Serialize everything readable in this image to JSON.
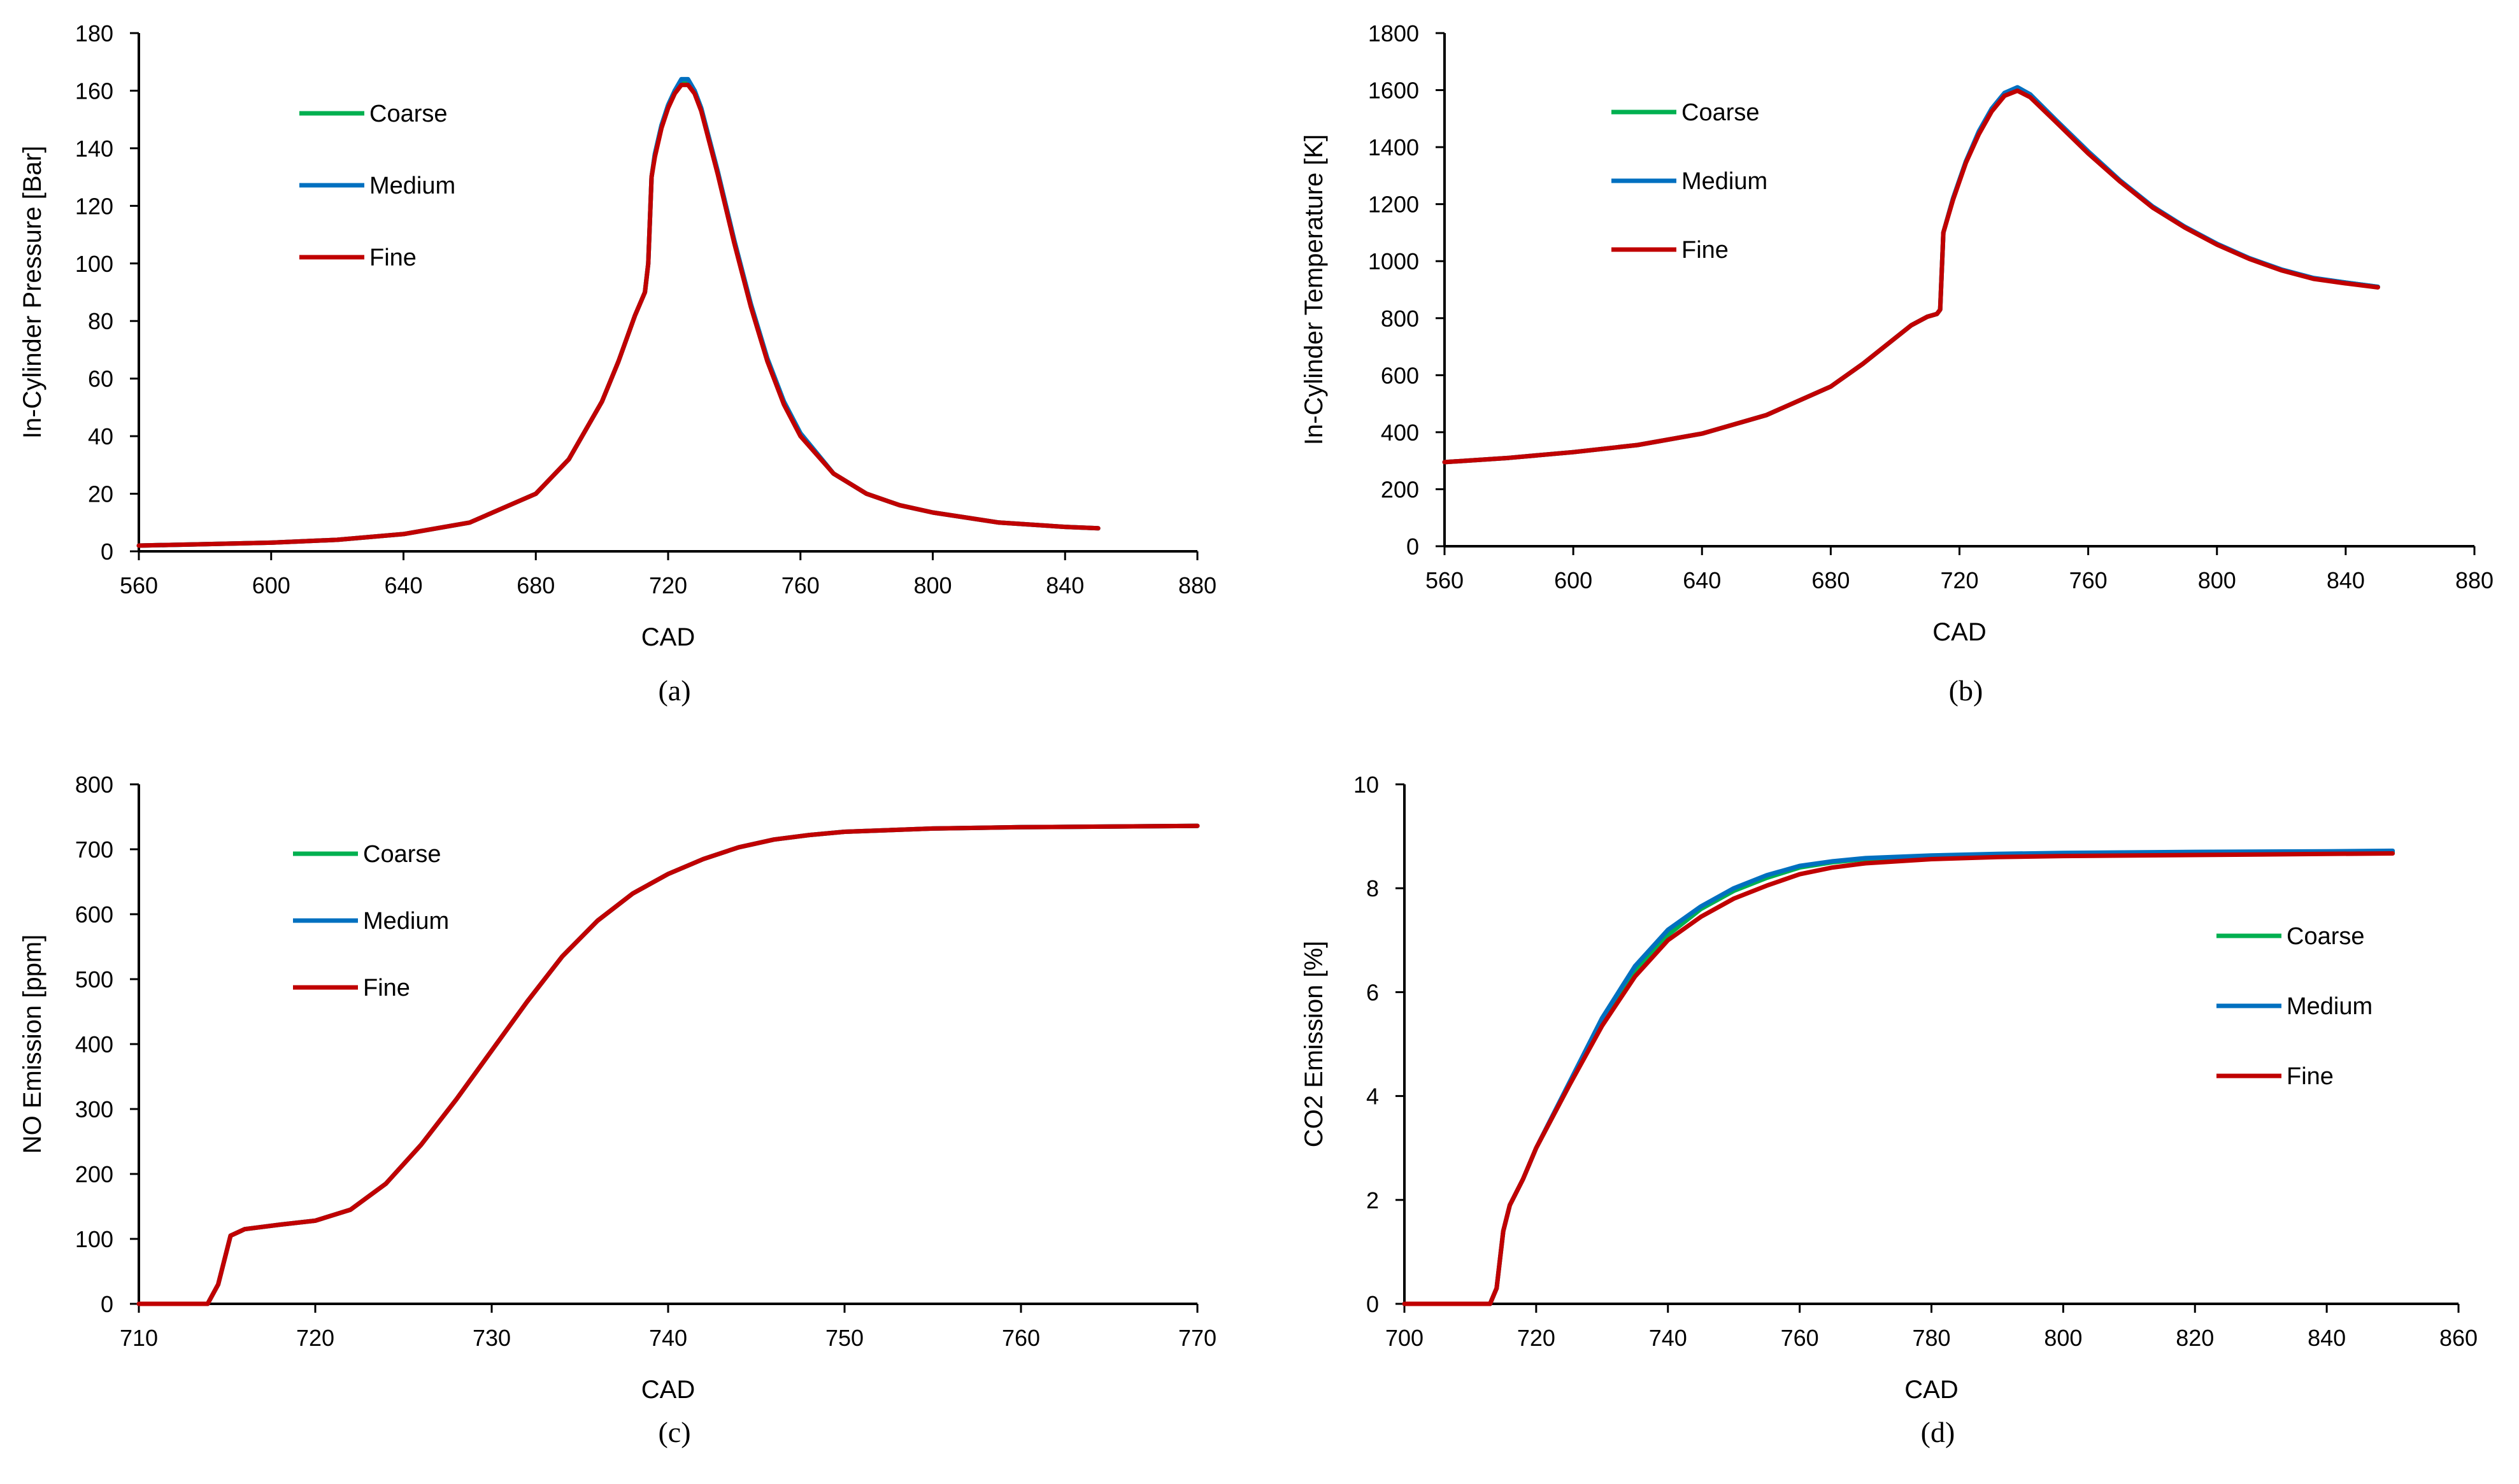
{
  "chart_data": [
    {
      "type": "line",
      "panel": "a",
      "caption": "(a)",
      "xlabel": "CAD",
      "ylabel": "In-Cylinder Pressure [Bar]",
      "xlim": [
        560,
        880
      ],
      "ylim": [
        0,
        180
      ],
      "xticks": [
        560,
        600,
        640,
        680,
        720,
        760,
        800,
        840,
        880
      ],
      "yticks": [
        0,
        20,
        40,
        60,
        80,
        100,
        120,
        140,
        160,
        180
      ],
      "xtick_labels": [
        "560",
        "600",
        "640",
        "680",
        "720",
        "760",
        "800",
        "840",
        "880"
      ],
      "ytick_labels": [
        "0",
        "20",
        "40",
        "60",
        "80",
        "100",
        "120",
        "140",
        "160",
        "180"
      ],
      "legend_position": "top-left",
      "series": [
        {
          "name": "Coarse",
          "color": "#00b050",
          "x": [
            560,
            580,
            600,
            620,
            640,
            660,
            680,
            690,
            700,
            705,
            710,
            713,
            714,
            715,
            716,
            718,
            720,
            722,
            724,
            726,
            728,
            730,
            735,
            740,
            745,
            750,
            755,
            760,
            770,
            780,
            790,
            800,
            820,
            840,
            850
          ],
          "y": [
            2,
            2.5,
            3,
            4,
            6,
            10,
            20,
            32,
            52,
            66,
            82,
            90,
            100,
            130,
            138,
            148,
            155,
            160,
            163,
            163,
            160,
            154,
            132,
            108,
            86,
            67,
            52,
            41,
            27,
            20,
            16,
            13.5,
            10,
            8.5,
            8
          ]
        },
        {
          "name": "Medium",
          "color": "#0070c0",
          "x": [
            560,
            580,
            600,
            620,
            640,
            660,
            680,
            690,
            700,
            705,
            710,
            713,
            714,
            715,
            716,
            718,
            720,
            722,
            724,
            726,
            728,
            730,
            735,
            740,
            745,
            750,
            755,
            760,
            770,
            780,
            790,
            800,
            820,
            840,
            850
          ],
          "y": [
            2,
            2.5,
            3,
            4,
            6,
            10,
            20,
            32,
            52,
            66,
            82,
            90,
            100,
            130,
            138,
            148,
            155,
            160,
            164,
            164,
            160,
            154,
            132,
            108,
            86,
            67,
            52,
            41,
            27,
            20,
            16,
            13.5,
            10,
            8.5,
            8
          ]
        },
        {
          "name": "Fine",
          "color": "#c00000",
          "x": [
            560,
            580,
            600,
            620,
            640,
            660,
            680,
            690,
            700,
            705,
            710,
            713,
            714,
            715,
            716,
            718,
            720,
            722,
            724,
            726,
            728,
            730,
            735,
            740,
            745,
            750,
            755,
            760,
            770,
            780,
            790,
            800,
            820,
            840,
            850
          ],
          "y": [
            2,
            2.5,
            3,
            4,
            6,
            10,
            20,
            32,
            52,
            66,
            82,
            90,
            100,
            130,
            137,
            147,
            154,
            159,
            162,
            162,
            159,
            153,
            131,
            107,
            85,
            66,
            51,
            40,
            27,
            20,
            16,
            13.5,
            10,
            8.5,
            8
          ]
        }
      ]
    },
    {
      "type": "line",
      "panel": "b",
      "caption": "(b)",
      "xlabel": "CAD",
      "ylabel": "In-Cylinder Temperature [K]",
      "xlim": [
        560,
        880
      ],
      "ylim": [
        0,
        1800
      ],
      "xticks": [
        560,
        600,
        640,
        680,
        720,
        760,
        800,
        840,
        880
      ],
      "yticks": [
        0,
        200,
        400,
        600,
        800,
        1000,
        1200,
        1400,
        1600,
        1800
      ],
      "xtick_labels": [
        "560",
        "600",
        "640",
        "680",
        "720",
        "760",
        "800",
        "840",
        "880"
      ],
      "ytick_labels": [
        "0",
        "200",
        "400",
        "600",
        "800",
        "1000",
        "1200",
        "1400",
        "1600",
        "1800"
      ],
      "legend_position": "top-left",
      "series": [
        {
          "name": "Coarse",
          "color": "#00b050",
          "x": [
            560,
            580,
            600,
            620,
            640,
            660,
            680,
            690,
            700,
            705,
            710,
            713,
            714,
            715,
            718,
            722,
            726,
            730,
            734,
            738,
            742,
            750,
            760,
            770,
            780,
            790,
            800,
            810,
            820,
            830,
            840,
            850
          ],
          "y": [
            295,
            310,
            330,
            355,
            395,
            460,
            560,
            640,
            730,
            775,
            805,
            815,
            830,
            1100,
            1220,
            1350,
            1450,
            1530,
            1585,
            1605,
            1580,
            1490,
            1380,
            1280,
            1190,
            1120,
            1060,
            1010,
            970,
            940,
            925,
            910
          ]
        },
        {
          "name": "Medium",
          "color": "#0070c0",
          "x": [
            560,
            580,
            600,
            620,
            640,
            660,
            680,
            690,
            700,
            705,
            710,
            713,
            714,
            715,
            718,
            722,
            726,
            730,
            734,
            738,
            742,
            750,
            760,
            770,
            780,
            790,
            800,
            810,
            820,
            830,
            840,
            850
          ],
          "y": [
            295,
            310,
            330,
            355,
            395,
            460,
            560,
            640,
            730,
            775,
            805,
            815,
            830,
            1100,
            1220,
            1350,
            1455,
            1535,
            1590,
            1610,
            1585,
            1495,
            1385,
            1282,
            1192,
            1121,
            1061,
            1011,
            971,
            941,
            925,
            910
          ]
        },
        {
          "name": "Fine",
          "color": "#c00000",
          "x": [
            560,
            580,
            600,
            620,
            640,
            660,
            680,
            690,
            700,
            705,
            710,
            713,
            714,
            715,
            718,
            722,
            726,
            730,
            734,
            738,
            742,
            750,
            760,
            770,
            780,
            790,
            800,
            810,
            820,
            830,
            840,
            850
          ],
          "y": [
            295,
            310,
            330,
            355,
            395,
            460,
            560,
            640,
            730,
            775,
            805,
            815,
            830,
            1100,
            1215,
            1345,
            1445,
            1525,
            1580,
            1598,
            1575,
            1488,
            1378,
            1278,
            1188,
            1118,
            1058,
            1008,
            968,
            938,
            922,
            908
          ]
        }
      ]
    },
    {
      "type": "line",
      "panel": "c",
      "caption": "(c)",
      "xlabel": "CAD",
      "ylabel": "NO Emission [ppm]",
      "xlim": [
        710,
        770
      ],
      "ylim": [
        0,
        800
      ],
      "xticks": [
        710,
        720,
        730,
        740,
        750,
        760,
        770
      ],
      "yticks": [
        0,
        100,
        200,
        300,
        400,
        500,
        600,
        700,
        800
      ],
      "xtick_labels": [
        "710",
        "720",
        "730",
        "740",
        "750",
        "760",
        "770"
      ],
      "ytick_labels": [
        "0",
        "100",
        "200",
        "300",
        "400",
        "500",
        "600",
        "700",
        "800"
      ],
      "legend_position": "top-left",
      "series": [
        {
          "name": "Coarse",
          "color": "#00b050",
          "x": [
            710,
            713.9,
            714.5,
            715.2,
            716,
            718,
            720,
            722,
            724,
            726,
            728,
            730,
            732,
            734,
            736,
            738,
            740,
            742,
            744,
            746,
            748,
            750,
            755,
            760,
            770
          ],
          "y": [
            0,
            0,
            30,
            105,
            115,
            122,
            128,
            145,
            185,
            245,
            315,
            390,
            465,
            535,
            590,
            632,
            662,
            685,
            703,
            715,
            722,
            727,
            732,
            734,
            736
          ]
        },
        {
          "name": "Medium",
          "color": "#0070c0",
          "x": [
            710,
            713.9,
            714.5,
            715.2,
            716,
            718,
            720,
            722,
            724,
            726,
            728,
            730,
            732,
            734,
            736,
            738,
            740,
            742,
            744,
            746,
            748,
            750,
            755,
            760,
            770
          ],
          "y": [
            0,
            0,
            30,
            105,
            115,
            122,
            128,
            145,
            185,
            245,
            315,
            390,
            465,
            535,
            590,
            632,
            662,
            685,
            703,
            715,
            722,
            727,
            732,
            734,
            736
          ]
        },
        {
          "name": "Fine",
          "color": "#c00000",
          "x": [
            710,
            713.9,
            714.5,
            715.2,
            716,
            718,
            720,
            722,
            724,
            726,
            728,
            730,
            732,
            734,
            736,
            738,
            740,
            742,
            744,
            746,
            748,
            750,
            755,
            760,
            770
          ],
          "y": [
            0,
            0,
            30,
            105,
            115,
            122,
            128,
            145,
            185,
            245,
            315,
            390,
            465,
            535,
            590,
            632,
            662,
            685,
            703,
            715,
            722,
            727,
            732,
            734,
            736
          ]
        }
      ]
    },
    {
      "type": "line",
      "panel": "d",
      "caption": "(d)",
      "xlabel": "CAD",
      "ylabel": "CO2 Emission [%]",
      "xlim": [
        700,
        860
      ],
      "ylim": [
        0,
        10
      ],
      "xticks": [
        700,
        720,
        740,
        760,
        780,
        800,
        820,
        840,
        860
      ],
      "yticks": [
        0,
        2,
        4,
        6,
        8,
        10
      ],
      "xtick_labels": [
        "700",
        "720",
        "740",
        "760",
        "780",
        "800",
        "820",
        "840",
        "860"
      ],
      "ytick_labels": [
        "0",
        "2",
        "4",
        "6",
        "8",
        "10"
      ],
      "legend_position": "middle-right",
      "series": [
        {
          "name": "Coarse",
          "color": "#00b050",
          "x": [
            700,
            713,
            714,
            715,
            716,
            718,
            720,
            725,
            730,
            735,
            740,
            745,
            750,
            755,
            760,
            765,
            770,
            780,
            790,
            800,
            820,
            840,
            850
          ],
          "y": [
            0,
            0,
            0.3,
            1.4,
            1.9,
            2.4,
            3.0,
            4.2,
            5.4,
            6.4,
            7.1,
            7.6,
            7.95,
            8.2,
            8.4,
            8.5,
            8.56,
            8.62,
            8.65,
            8.67,
            8.68,
            8.69,
            8.7
          ]
        },
        {
          "name": "Medium",
          "color": "#0070c0",
          "x": [
            700,
            713,
            714,
            715,
            716,
            718,
            720,
            725,
            730,
            735,
            740,
            745,
            750,
            755,
            760,
            765,
            770,
            780,
            790,
            800,
            820,
            840,
            850
          ],
          "y": [
            0,
            0,
            0.3,
            1.4,
            1.9,
            2.4,
            3.0,
            4.25,
            5.5,
            6.5,
            7.2,
            7.65,
            8.0,
            8.25,
            8.43,
            8.52,
            8.58,
            8.63,
            8.66,
            8.68,
            8.7,
            8.71,
            8.72
          ]
        },
        {
          "name": "Fine",
          "color": "#c00000",
          "x": [
            700,
            713,
            714,
            715,
            716,
            718,
            720,
            725,
            730,
            735,
            740,
            745,
            750,
            755,
            760,
            765,
            770,
            780,
            790,
            800,
            820,
            840,
            850
          ],
          "y": [
            0,
            0,
            0.3,
            1.4,
            1.9,
            2.4,
            3.0,
            4.2,
            5.35,
            6.3,
            7.0,
            7.45,
            7.8,
            8.05,
            8.27,
            8.4,
            8.48,
            8.56,
            8.6,
            8.62,
            8.64,
            8.66,
            8.67
          ]
        }
      ]
    }
  ]
}
